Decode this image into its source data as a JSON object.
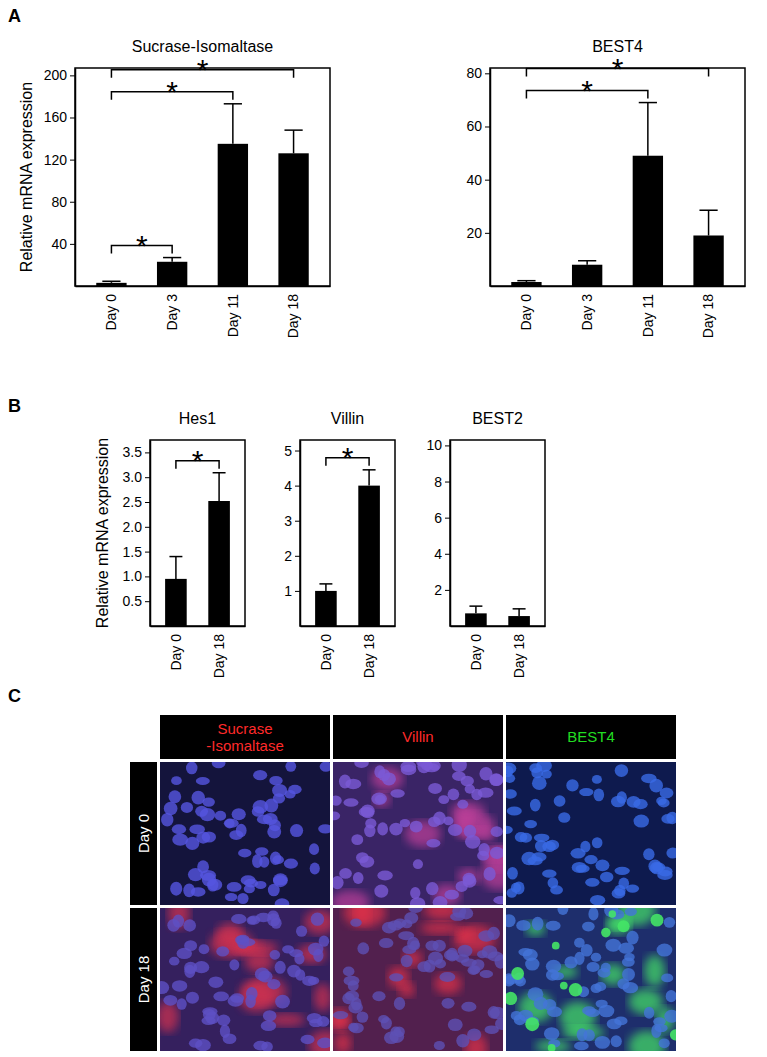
{
  "panel_labels": [
    "A",
    "B",
    "C"
  ],
  "chart_data": [
    {
      "type": "bar",
      "title": "Sucrase-Isomaltase",
      "y_label": "Relative mRNA expression",
      "categories": [
        "Day 0",
        "Day 3",
        "Day 11",
        "Day 18"
      ],
      "values": [
        3,
        23,
        135,
        126
      ],
      "error": [
        1.5,
        4,
        38,
        22
      ],
      "color": "#000000",
      "ylim": [
        0,
        207
      ],
      "yticks": [
        40,
        80,
        120,
        160,
        200
      ],
      "significance": [
        {
          "from": "Day 0",
          "to": "Day 3",
          "label": "*"
        },
        {
          "from": "Day 0",
          "to": "Day 11",
          "label": "*"
        },
        {
          "from": "Day 0",
          "to": "Day 18",
          "label": "*"
        }
      ]
    },
    {
      "type": "bar",
      "title": "BEST4",
      "categories": [
        "Day 0",
        "Day 3",
        "Day 11",
        "Day 18"
      ],
      "values": [
        1.5,
        8,
        49,
        19
      ],
      "error": [
        0.5,
        1.5,
        20,
        9.5
      ],
      "color": "#000000",
      "ylim": [
        0,
        82
      ],
      "yticks": [
        20,
        40,
        60,
        80
      ],
      "significance": [
        {
          "from": "Day 0",
          "to": "Day 11",
          "label": "*"
        },
        {
          "from": "Day 0",
          "to": "Day 18",
          "label": "*"
        }
      ]
    },
    {
      "type": "bar",
      "title": "Hes1",
      "y_label": "Relative mRNA expression",
      "categories": [
        "Day 0",
        "Day 18"
      ],
      "values": [
        0.95,
        2.52
      ],
      "error": [
        0.45,
        0.57
      ],
      "color": "#000000",
      "ylim": [
        0,
        3.75
      ],
      "yticks": [
        0.5,
        {
          "value": 1,
          "label": "1.0"
        },
        1.5,
        {
          "value": 2,
          "label": "2.0"
        },
        2.5,
        {
          "value": 3,
          "label": "3.0"
        },
        3.5
      ],
      "significance": [
        {
          "from": "Day 0",
          "to": "Day 18",
          "label": "*"
        }
      ]
    },
    {
      "type": "bar",
      "title": "Villin",
      "categories": [
        "Day 0",
        "Day 18"
      ],
      "values": [
        1.0,
        4.0
      ],
      "error": [
        0.2,
        0.45
      ],
      "color": "#000000",
      "ylim": [
        0,
        5.3
      ],
      "yticks": [
        1,
        2,
        3,
        4,
        5
      ],
      "significance": [
        {
          "from": "Day 0",
          "to": "Day 18",
          "label": "*"
        }
      ]
    },
    {
      "type": "bar",
      "title": "BEST2",
      "categories": [
        "Day 0",
        "Day 18"
      ],
      "values": [
        0.7,
        0.55
      ],
      "error": [
        0.4,
        0.4
      ],
      "color": "#000000",
      "ylim": [
        0,
        10.3
      ],
      "yticks": [
        2,
        4,
        6,
        8,
        10
      ]
    }
  ],
  "image_panel": {
    "columns": [
      {
        "lines": [
          "Sucrase",
          "-Isomaltase"
        ],
        "color": "#ff2a2a"
      },
      {
        "lines": [
          "Villin"
        ],
        "color": "#ff2a2a"
      },
      {
        "lines": [
          "BEST4"
        ],
        "color": "#22dd22"
      }
    ],
    "rows": [
      "Day 0",
      "Day 18"
    ]
  }
}
